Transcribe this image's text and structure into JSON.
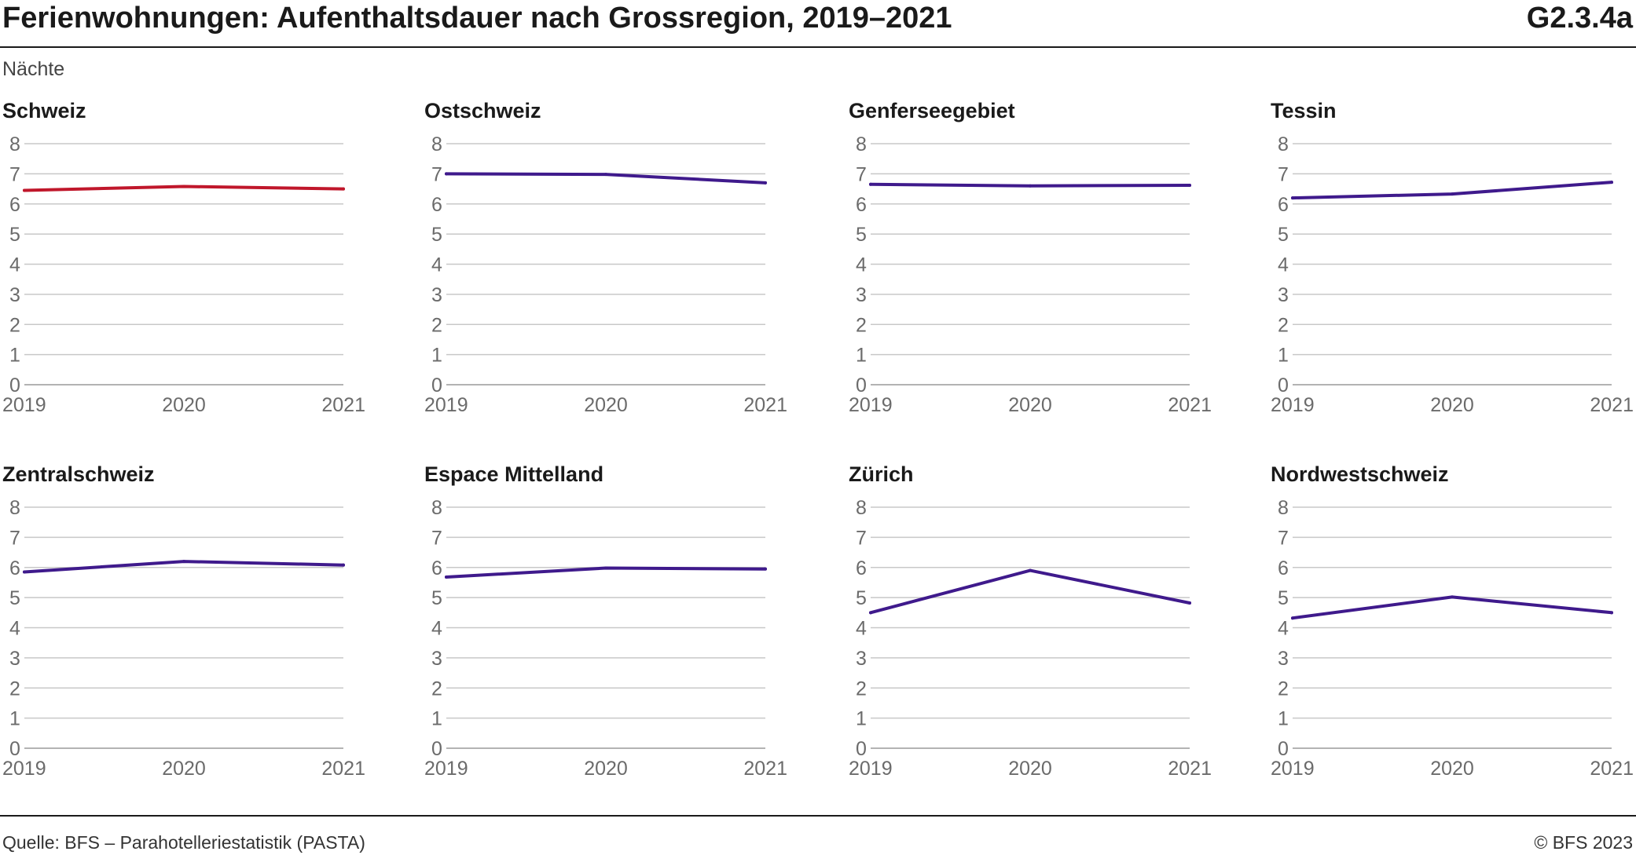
{
  "header": {
    "title": "Ferienwohnungen: Aufenthaltsdauer nach Grossregion, 2019–2021",
    "code": "G2.3.4a",
    "unit_label": "Nächte"
  },
  "footer": {
    "source": "Quelle: BFS – Parahotelleriestatistik (PASTA)",
    "copyright": "© BFS 2023"
  },
  "colors": {
    "highlight": "#c0172b",
    "series": "#3f1a8c",
    "grid": "#c8c8c8",
    "tick_text": "#6b6b6b"
  },
  "chart_data": [
    {
      "type": "line",
      "title": "Schweiz",
      "x": [
        "2019",
        "2020",
        "2021"
      ],
      "values": [
        6.45,
        6.58,
        6.5
      ],
      "ylim": [
        0,
        8
      ],
      "yticks": [
        "0",
        "1",
        "2",
        "3",
        "4",
        "5",
        "6",
        "7",
        "8"
      ],
      "grid": true,
      "color": "#c0172b"
    },
    {
      "type": "line",
      "title": "Ostschweiz",
      "x": [
        "2019",
        "2020",
        "2021"
      ],
      "values": [
        7.0,
        6.98,
        6.7
      ],
      "ylim": [
        0,
        8
      ],
      "yticks": [
        "0",
        "1",
        "2",
        "3",
        "4",
        "5",
        "6",
        "7",
        "8"
      ],
      "grid": true,
      "color": "#3f1a8c"
    },
    {
      "type": "line",
      "title": "Genferseegebiet",
      "x": [
        "2019",
        "2020",
        "2021"
      ],
      "values": [
        6.65,
        6.6,
        6.62
      ],
      "ylim": [
        0,
        8
      ],
      "yticks": [
        "0",
        "1",
        "2",
        "3",
        "4",
        "5",
        "6",
        "7",
        "8"
      ],
      "grid": true,
      "color": "#3f1a8c"
    },
    {
      "type": "line",
      "title": "Tessin",
      "x": [
        "2019",
        "2020",
        "2021"
      ],
      "values": [
        6.2,
        6.33,
        6.72
      ],
      "ylim": [
        0,
        8
      ],
      "yticks": [
        "0",
        "1",
        "2",
        "3",
        "4",
        "5",
        "6",
        "7",
        "8"
      ],
      "grid": true,
      "color": "#3f1a8c"
    },
    {
      "type": "line",
      "title": "Zentralschweiz",
      "x": [
        "2019",
        "2020",
        "2021"
      ],
      "values": [
        5.85,
        6.2,
        6.08
      ],
      "ylim": [
        0,
        8
      ],
      "yticks": [
        "0",
        "1",
        "2",
        "3",
        "4",
        "5",
        "6",
        "7",
        "8"
      ],
      "grid": true,
      "color": "#3f1a8c"
    },
    {
      "type": "line",
      "title": "Espace Mittelland",
      "x": [
        "2019",
        "2020",
        "2021"
      ],
      "values": [
        5.68,
        5.98,
        5.95
      ],
      "ylim": [
        0,
        8
      ],
      "yticks": [
        "0",
        "1",
        "2",
        "3",
        "4",
        "5",
        "6",
        "7",
        "8"
      ],
      "grid": true,
      "color": "#3f1a8c"
    },
    {
      "type": "line",
      "title": "Zürich",
      "x": [
        "2019",
        "2020",
        "2021"
      ],
      "values": [
        4.5,
        5.9,
        4.82
      ],
      "ylim": [
        0,
        8
      ],
      "yticks": [
        "0",
        "1",
        "2",
        "3",
        "4",
        "5",
        "6",
        "7",
        "8"
      ],
      "grid": true,
      "color": "#3f1a8c"
    },
    {
      "type": "line",
      "title": "Nordwestschweiz",
      "x": [
        "2019",
        "2020",
        "2021"
      ],
      "values": [
        4.32,
        5.02,
        4.5
      ],
      "ylim": [
        0,
        8
      ],
      "yticks": [
        "0",
        "1",
        "2",
        "3",
        "4",
        "5",
        "6",
        "7",
        "8"
      ],
      "grid": true,
      "color": "#3f1a8c"
    }
  ]
}
